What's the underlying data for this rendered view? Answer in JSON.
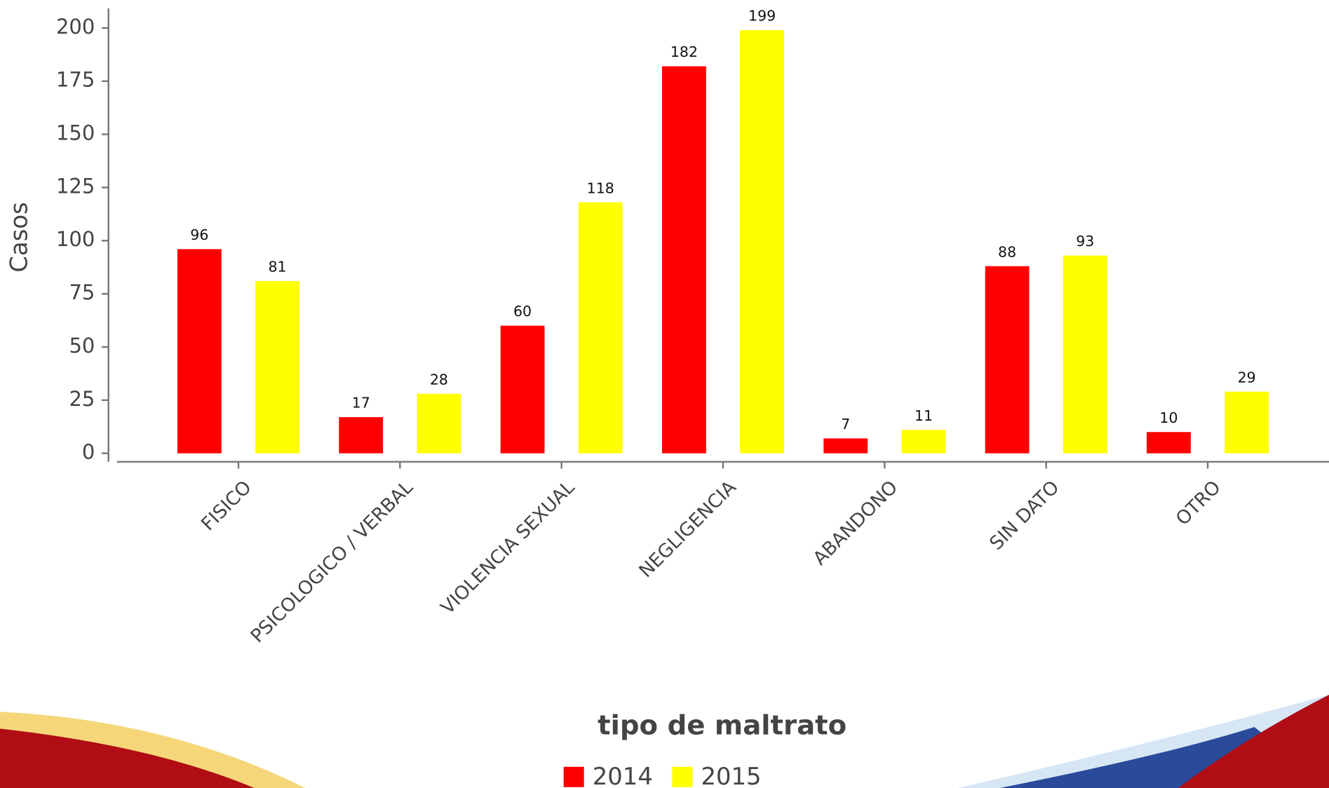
{
  "chart_data": {
    "type": "bar",
    "x_label": "tipo de maltrato",
    "y_label": "Casos",
    "categories": [
      "FISICO",
      "PSICOLOGICO / VERBAL",
      "VIOLENCIA SEXUAL",
      "NEGLIGENCIA",
      "ABANDONO",
      "SIN DATO",
      "OTRO"
    ],
    "series": [
      {
        "name": "2014",
        "color": "#ff0000",
        "values": [
          96,
          17,
          60,
          182,
          7,
          88,
          10
        ]
      },
      {
        "name": "2015",
        "color": "#ffff00",
        "values": [
          81,
          28,
          118,
          199,
          11,
          93,
          29
        ]
      }
    ],
    "ylim": [
      0,
      200
    ],
    "yticks": [
      0,
      25,
      50,
      75,
      100,
      125,
      150,
      175,
      200
    ],
    "grid": false,
    "legend": "bottom"
  }
}
